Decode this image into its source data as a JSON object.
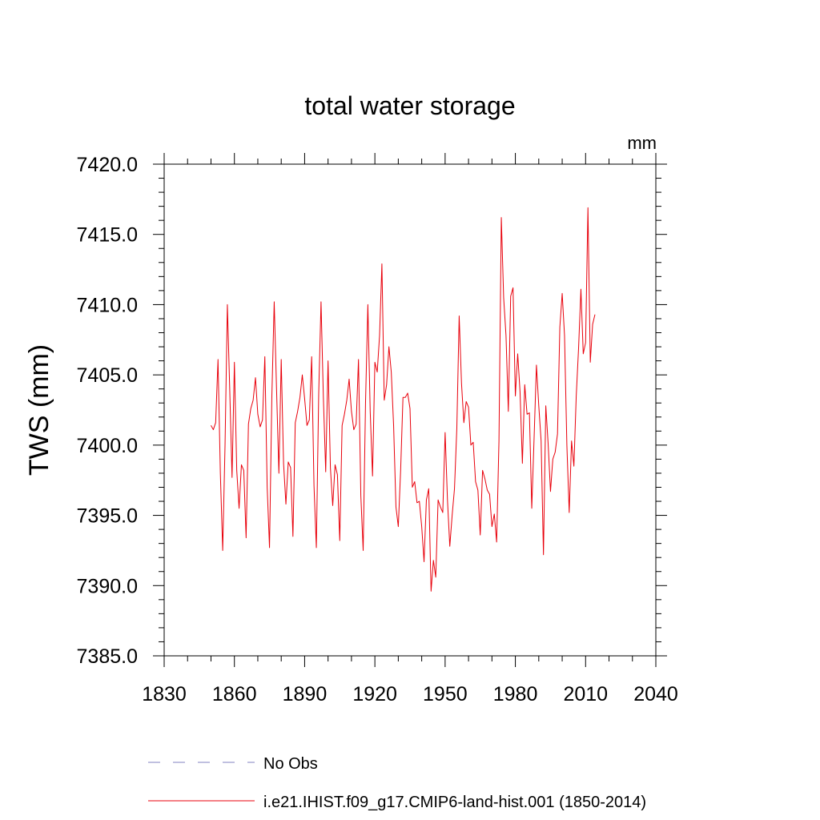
{
  "chart_data": {
    "type": "line",
    "title": "total water storage",
    "units": "mm",
    "ylabel": "TWS  (mm)",
    "xlabel": "",
    "xlim": [
      1830,
      2040
    ],
    "ylim": [
      7385.0,
      7420.0
    ],
    "x_ticks": [
      "1830",
      "1860",
      "1890",
      "1920",
      "1950",
      "1980",
      "2010",
      "2040"
    ],
    "y_ticks": [
      "7385.0",
      "7390.0",
      "7395.0",
      "7400.0",
      "7405.0",
      "7410.0",
      "7415.0",
      "7420.0"
    ],
    "grid": false,
    "legend_position": "bottom",
    "colors": {
      "obs": "#8080c0",
      "model": "#e8000b",
      "axis": "#000000"
    },
    "series": [
      {
        "name": "No Obs",
        "style": "dashed",
        "x": [],
        "y": []
      },
      {
        "name": "i.e21.IHIST.f09_g17.CMIP6-land-hist.001 (1850-2014)",
        "style": "solid",
        "x": [
          1850,
          1851,
          1852,
          1853,
          1854,
          1855,
          1856,
          1857,
          1858,
          1859,
          1860,
          1861,
          1862,
          1863,
          1864,
          1865,
          1866,
          1867,
          1868,
          1869,
          1870,
          1871,
          1872,
          1873,
          1874,
          1875,
          1876,
          1877,
          1878,
          1879,
          1880,
          1881,
          1882,
          1883,
          1884,
          1885,
          1886,
          1887,
          1888,
          1889,
          1890,
          1891,
          1892,
          1893,
          1894,
          1895,
          1896,
          1897,
          1898,
          1899,
          1900,
          1901,
          1902,
          1903,
          1904,
          1905,
          1906,
          1907,
          1908,
          1909,
          1910,
          1911,
          1912,
          1913,
          1914,
          1915,
          1916,
          1917,
          1918,
          1919,
          1920,
          1921,
          1922,
          1923,
          1924,
          1925,
          1926,
          1927,
          1928,
          1929,
          1930,
          1931,
          1932,
          1933,
          1934,
          1935,
          1936,
          1937,
          1938,
          1939,
          1940,
          1941,
          1942,
          1943,
          1944,
          1945,
          1946,
          1947,
          1948,
          1949,
          1950,
          1951,
          1952,
          1953,
          1954,
          1955,
          1956,
          1957,
          1958,
          1959,
          1960,
          1961,
          1962,
          1963,
          1964,
          1965,
          1966,
          1967,
          1968,
          1969,
          1970,
          1971,
          1972,
          1973,
          1974,
          1975,
          1976,
          1977,
          1978,
          1979,
          1980,
          1981,
          1982,
          1983,
          1984,
          1985,
          1986,
          1987,
          1988,
          1989,
          1990,
          1991,
          1992,
          1993,
          1994,
          1995,
          1996,
          1997,
          1998,
          1999,
          2000,
          2001,
          2002,
          2003,
          2004,
          2005,
          2006,
          2007,
          2008,
          2009,
          2010,
          2011,
          2012,
          2013,
          2014
        ],
        "y": [
          7401.4,
          7401.1,
          7401.6,
          7406.1,
          7398.0,
          7392.5,
          7400.0,
          7410.0,
          7404.0,
          7397.7,
          7405.9,
          7398.2,
          7395.5,
          7398.6,
          7398.2,
          7393.4,
          7401.5,
          7402.6,
          7403.2,
          7404.8,
          7402.2,
          7401.3,
          7401.8,
          7406.3,
          7397.0,
          7392.7,
          7403.5,
          7410.2,
          7404.0,
          7398.0,
          7406.1,
          7398.7,
          7395.8,
          7398.8,
          7398.4,
          7393.5,
          7401.6,
          7402.4,
          7403.4,
          7405.0,
          7403.3,
          7401.4,
          7401.8,
          7406.3,
          7397.1,
          7392.7,
          7403.6,
          7410.2,
          7403.4,
          7398.1,
          7406.0,
          7398.4,
          7395.7,
          7398.6,
          7397.9,
          7393.2,
          7401.4,
          7402.2,
          7403.2,
          7404.7,
          7402.4,
          7401.1,
          7401.5,
          7406.1,
          7396.4,
          7392.5,
          7403.0,
          7410.0,
          7402.4,
          7397.8,
          7405.9,
          7405.2,
          7407.8,
          7412.9,
          7403.2,
          7404.3,
          7407.0,
          7405.2,
          7401.4,
          7395.6,
          7394.2,
          7398.2,
          7403.4,
          7403.4,
          7403.7,
          7402.6,
          7397.0,
          7397.4,
          7395.9,
          7396.0,
          7394.2,
          7391.7,
          7396.1,
          7396.9,
          7389.6,
          7391.8,
          7390.6,
          7396.1,
          7395.6,
          7395.2,
          7400.9,
          7396.1,
          7392.8,
          7395.0,
          7396.9,
          7401.2,
          7409.2,
          7404.4,
          7401.6,
          7403.1,
          7402.7,
          7400.0,
          7400.2,
          7397.4,
          7396.8,
          7393.6,
          7398.2,
          7397.6,
          7396.8,
          7396.5,
          7394.2,
          7395.1,
          7393.1,
          7400.3,
          7416.2,
          7410.5,
          7407.8,
          7402.4,
          7410.6,
          7411.2,
          7403.5,
          7406.5,
          7403.8,
          7398.7,
          7404.3,
          7402.2,
          7402.3,
          7395.5,
          7400.5,
          7405.7,
          7402.8,
          7400.3,
          7392.2,
          7402.8,
          7400.1,
          7396.7,
          7399.0,
          7399.5,
          7400.8,
          7408.4,
          7410.8,
          7407.8,
          7400.0,
          7395.2,
          7400.3,
          7398.5,
          7403.5,
          7406.9,
          7411.1,
          7406.5,
          7407.3,
          7416.9,
          7405.9,
          7408.6,
          7409.3
        ]
      }
    ]
  }
}
